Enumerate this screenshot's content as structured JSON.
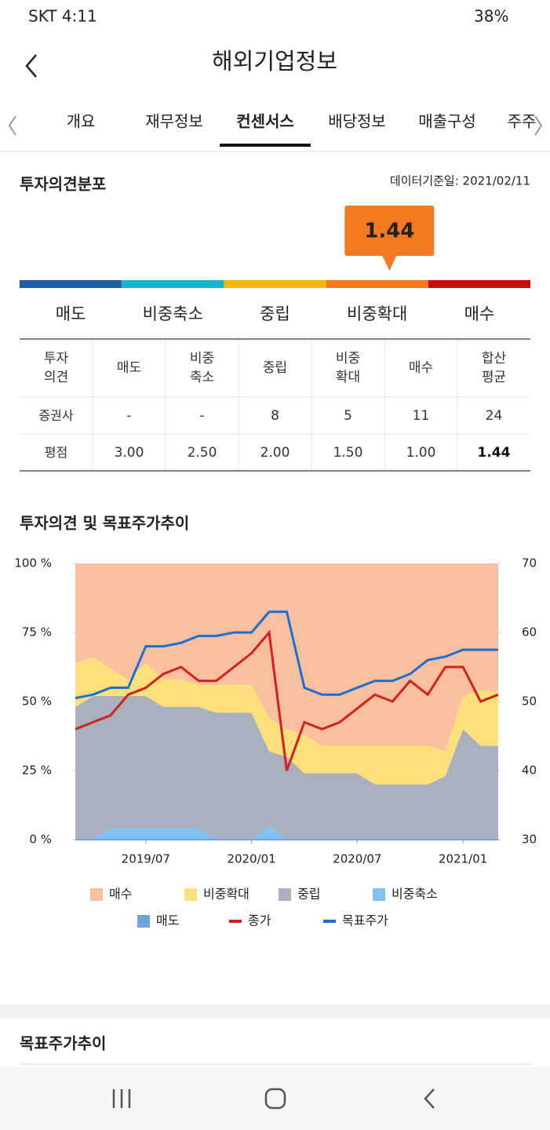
{
  "status_bar": {
    "carrier_time": "SKT 4:11",
    "battery": "38%"
  },
  "header": {
    "title": "해외기업정보"
  },
  "tabs": [
    "개요",
    "재무정보",
    "컨센서스",
    "배당정보",
    "매출구성",
    "주주"
  ],
  "distribution": {
    "title": "투자의견분포",
    "date": "데이터기준일: 2021/02/11",
    "score": 1.44,
    "labels": [
      "매도",
      "비중축소",
      "중립",
      "비중확대",
      "매수"
    ],
    "colors": [
      "#1a5fa3",
      "#1ab3cf",
      "#f5b800",
      "#f47920",
      "#cc0a0a"
    ]
  },
  "table": {
    "header": [
      "투자\n의견",
      "매도",
      "비중\n축소",
      "중립",
      "비중\n확대",
      "매수",
      "합산\n평균"
    ],
    "rows": [
      [
        "증권사",
        "-",
        "-",
        8,
        5,
        11,
        24
      ],
      [
        "평점",
        "3.00",
        "2.50",
        "2.00",
        "1.50",
        "1.00"
      ]
    ]
  },
  "trend_chart": {
    "type": "area",
    "title": "투자의견 및 목표주가추이",
    "x": [
      "2019/03",
      "2019/04",
      "2019/05",
      "2019/06",
      "2019/07",
      "2019/08",
      "2019/09",
      "2019/10",
      "2019/11",
      "2019/12",
      "2020/01",
      "2020/02",
      "2020/03",
      "2020/04",
      "2020/05",
      "2020/06",
      "2020/07",
      "2020/08",
      "2020/09",
      "2020/10",
      "2020/11",
      "2020/12",
      "2021/01",
      "2021/02",
      "2021/03"
    ],
    "xlim": [
      "2019/03",
      "2021/03"
    ],
    "xticks": [
      "2019/07",
      "2020/01",
      "2020/07",
      "2021/01"
    ],
    "ylim": [
      0,
      100
    ],
    "yticks": [
      {
        "value": 0,
        "label": "0 %"
      },
      {
        "value": 25,
        "label": "25 %"
      },
      {
        "value": 50,
        "label": "50 %"
      },
      {
        "value": 75,
        "label": "75 %"
      },
      {
        "value": 100,
        "label": "100 %"
      }
    ],
    "y2lim": [
      30,
      70
    ],
    "y2ticks": [
      30,
      40,
      50,
      60,
      70
    ],
    "series": [
      {
        "name": "매수",
        "color": "#f9c0a0",
        "values": [
          36,
          34,
          38,
          42,
          36,
          42,
          42,
          44,
          44,
          44,
          44,
          56,
          60,
          62,
          66,
          66,
          66,
          66,
          66,
          66,
          66,
          68,
          48,
          46,
          46
        ]
      },
      {
        "name": "비중확대",
        "color": "#fde07a",
        "values": [
          16,
          14,
          10,
          6,
          12,
          10,
          10,
          8,
          10,
          10,
          10,
          12,
          10,
          14,
          10,
          10,
          10,
          14,
          14,
          14,
          14,
          9,
          12,
          20,
          20
        ]
      },
      {
        "name": "중립",
        "color": "#a9b0bd",
        "values": [
          48,
          52,
          48,
          48,
          48,
          44,
          44,
          44,
          46,
          46,
          46,
          27,
          30,
          24,
          24,
          24,
          24,
          20,
          20,
          20,
          20,
          23,
          40,
          34,
          34
        ]
      },
      {
        "name": "비중축소",
        "color": "#7fc0f5",
        "values": [
          0,
          0,
          4,
          4,
          4,
          4,
          4,
          4,
          0,
          0,
          0,
          5,
          0,
          0,
          0,
          0,
          0,
          0,
          0,
          0,
          0,
          0,
          0,
          0,
          0
        ]
      },
      {
        "name": "매도",
        "color": "#6fa3e0",
        "values": [
          0,
          0,
          0,
          0,
          0,
          0,
          0,
          0,
          0,
          0,
          0,
          0,
          0,
          0,
          0,
          0,
          0,
          0,
          0,
          0,
          0,
          0,
          0,
          0,
          0
        ]
      },
      {
        "name": "종가",
        "color": "#d42020",
        "axis": "y2",
        "values": [
          46,
          47,
          48,
          51,
          52,
          54,
          55,
          53,
          53,
          55,
          57,
          60,
          40,
          47,
          46,
          47,
          49,
          51,
          50,
          53,
          51,
          55,
          55,
          50,
          51
        ]
      },
      {
        "name": "목표주가",
        "color": "#1a6fd4",
        "axis": "y2",
        "values": [
          50.5,
          51,
          52,
          52,
          58,
          58,
          58.5,
          59.5,
          59.5,
          60,
          60,
          63,
          63,
          52,
          51,
          51,
          52,
          53,
          53,
          54,
          56,
          56.5,
          57.5,
          57.5,
          57.5
        ]
      }
    ]
  },
  "target_section": {
    "title": "목표주가추이"
  }
}
